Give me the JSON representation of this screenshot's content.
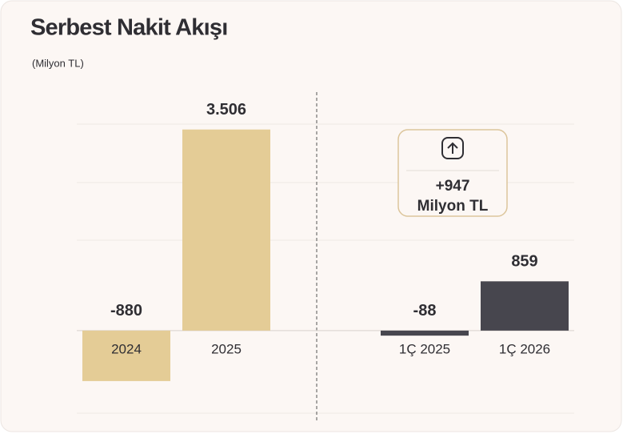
{
  "chart_data": {
    "type": "bar",
    "title": "Serbest Nakit Akışı",
    "subtitle": "(Milyon TL)",
    "categories": [
      "2024",
      "2025",
      "1Ç 2025",
      "1Ç 2026"
    ],
    "values": [
      -880,
      3506,
      -88,
      859
    ],
    "value_labels": [
      "-880",
      "3.506",
      "-88",
      "859"
    ],
    "colors": [
      "#e4cc96",
      "#e4cc96",
      "#47464e",
      "#47464e"
    ],
    "ylim": [
      -1440,
      3600
    ],
    "annotation": [
      "+947",
      "Milyon TL"
    ]
  }
}
